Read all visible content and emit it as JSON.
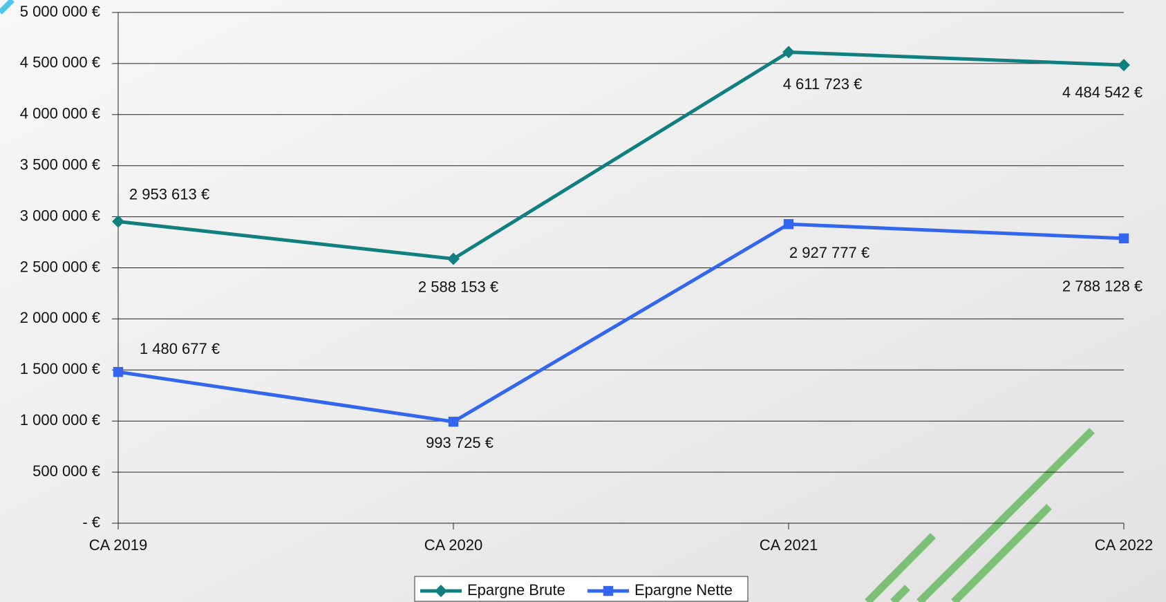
{
  "chart_data": {
    "type": "line",
    "categories": [
      "CA 2019",
      "CA 2020",
      "CA 2021",
      "CA 2022"
    ],
    "series": [
      {
        "name": "Epargne Brute",
        "color": "#107f7f",
        "marker": "diamond",
        "values": [
          2953613,
          2588153,
          4611723,
          4484542
        ],
        "value_labels": [
          "2 953 613 €",
          "2 588 153 €",
          "4 611 723 €",
          "4 484 542 €"
        ]
      },
      {
        "name": "Epargne Nette",
        "color": "#3366ee",
        "marker": "square",
        "values": [
          1480677,
          993725,
          2927777,
          2788128
        ],
        "value_labels": [
          "1 480 677 €",
          "993 725 €",
          "2 927 777 €",
          "2 788 128 €"
        ]
      }
    ],
    "ylim": [
      0,
      5000000
    ],
    "yticks": [
      {
        "value": 0,
        "label": "- €"
      },
      {
        "value": 500000,
        "label": "500 000 €"
      },
      {
        "value": 1000000,
        "label": "1 000 000 €"
      },
      {
        "value": 1500000,
        "label": "1 500 000 €"
      },
      {
        "value": 2000000,
        "label": "2 000 000 €"
      },
      {
        "value": 2500000,
        "label": "2 500 000 €"
      },
      {
        "value": 3000000,
        "label": "3 000 000 €"
      },
      {
        "value": 3500000,
        "label": "3 500 000 €"
      },
      {
        "value": 4000000,
        "label": "4 000 000 €"
      },
      {
        "value": 4500000,
        "label": "4 500 000 €"
      },
      {
        "value": 5000000,
        "label": "5 000 000 €"
      }
    ],
    "grid": true,
    "legend": "bottom"
  }
}
